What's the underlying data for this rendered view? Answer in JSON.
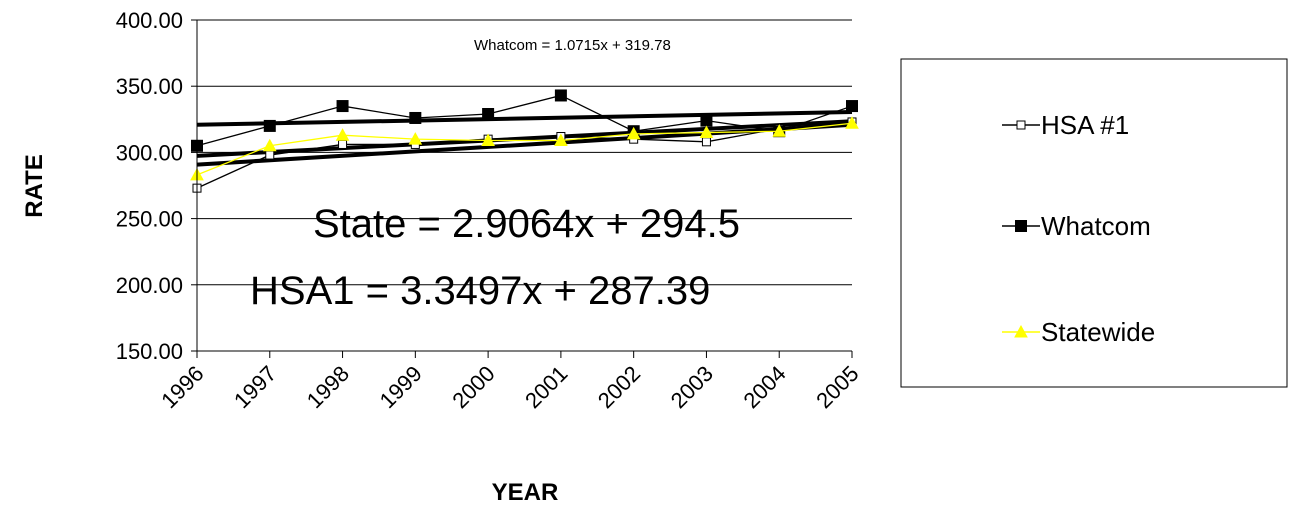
{
  "chart_data": {
    "type": "line",
    "xlabel": "YEAR",
    "ylabel": "RATE",
    "ylim": [
      150,
      400
    ],
    "yticks": [
      "150.00",
      "200.00",
      "250.00",
      "300.00",
      "350.00",
      "400.00"
    ],
    "categories": [
      "1996",
      "1997",
      "1998",
      "1999",
      "2000",
      "2001",
      "2002",
      "2003",
      "2004",
      "2005"
    ],
    "grid": "horizontal",
    "legend_position": "right",
    "series": [
      {
        "name": "HSA #1",
        "marker": "open-square",
        "color": "#000000",
        "values": [
          273,
          298,
          306,
          306,
          310,
          312,
          310,
          308,
          318,
          323
        ]
      },
      {
        "name": "Whatcom",
        "marker": "filled-square",
        "color": "#000000",
        "values": [
          305,
          320,
          335,
          326,
          329,
          343,
          316,
          324,
          316,
          335
        ]
      },
      {
        "name": "Statewide",
        "marker": "triangle",
        "color": "#ffff00",
        "values": [
          283,
          305,
          313,
          310,
          309,
          309,
          314,
          315,
          316,
          322
        ]
      }
    ],
    "trendlines": [
      {
        "label": "Whatcom = 1.0715x + 319.78",
        "slope": 1.0715,
        "intercept": 319.78
      },
      {
        "label": "State = 2.9064x + 294.5",
        "slope": 2.9064,
        "intercept": 294.5
      },
      {
        "label": "HSA1 = 3.3497x + 287.39",
        "slope": 3.3497,
        "intercept": 287.39
      }
    ]
  }
}
